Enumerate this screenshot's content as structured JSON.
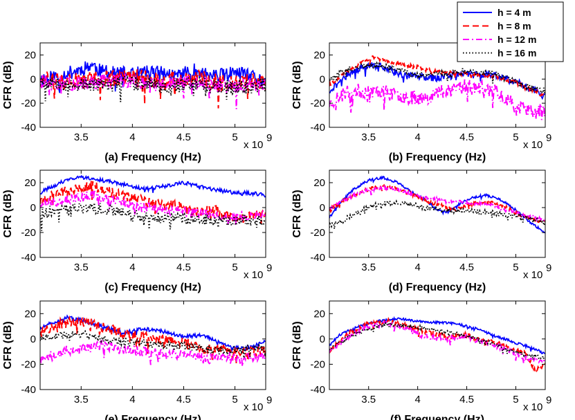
{
  "colors": {
    "h4": "#0000ff",
    "h8": "#ff0000",
    "h12": "#ff00ff",
    "h16": "#000000"
  },
  "legend": {
    "position": "top-right",
    "entries": [
      {
        "label": "h = 4 m",
        "color": "#0000ff",
        "style": "solid"
      },
      {
        "label": "h = 8 m",
        "color": "#ff0000",
        "style": "dashed"
      },
      {
        "label": "h = 12 m",
        "color": "#ff00ff",
        "style": "dashdot"
      },
      {
        "label": "h = 16 m",
        "color": "#000000",
        "style": "dotted"
      }
    ]
  },
  "chart_data": [
    {
      "type": "line",
      "caption": "(a)  Frequency (Hz)",
      "ylabel": "CFR (dB)",
      "xlim": [
        3.1,
        5.3
      ],
      "ylim": [
        -40,
        30
      ],
      "x_multiplier": "x 10",
      "x_multiplier_exp": "9",
      "xticks": [
        "3.5",
        "4",
        "4.5",
        "5"
      ],
      "yticks": [
        "20",
        "0",
        "-20",
        "-40"
      ],
      "series": [
        {
          "name": "h = 4 m",
          "x": [
            3.1,
            3.3,
            3.5,
            3.6,
            3.7,
            3.8,
            4.0,
            4.2,
            4.4,
            4.6,
            4.8,
            5.0,
            5.2,
            5.3
          ],
          "y": [
            0,
            3,
            8,
            12,
            6,
            5,
            4,
            6,
            3,
            7,
            2,
            5,
            1,
            -2
          ],
          "noise": 12,
          "seed": 11
        },
        {
          "name": "h = 8 m",
          "x": [
            3.1,
            3.4,
            3.7,
            4.0,
            4.3,
            4.6,
            4.9,
            5.1,
            5.3
          ],
          "y": [
            0,
            -2,
            0,
            2,
            -2,
            1,
            -3,
            -2,
            -3
          ],
          "noise": 14,
          "seed": 12
        },
        {
          "name": "h = 12 m",
          "x": [
            3.1,
            3.4,
            3.7,
            4.0,
            4.3,
            4.6,
            4.9,
            5.1,
            5.3
          ],
          "y": [
            -2,
            -4,
            -2,
            -1,
            -5,
            -2,
            -6,
            -5,
            -4
          ],
          "noise": 12,
          "seed": 13
        },
        {
          "name": "h = 16 m",
          "x": [
            3.1,
            3.4,
            3.7,
            4.0,
            4.3,
            4.6,
            4.9,
            5.1,
            5.3
          ],
          "y": [
            -2,
            -5,
            -4,
            -3,
            -6,
            -4,
            -7,
            -6,
            -5
          ],
          "noise": 12,
          "seed": 14
        }
      ]
    },
    {
      "type": "line",
      "caption": "(b)  Frequency (Hz)",
      "ylabel": "CFR (dB)",
      "xlim": [
        3.1,
        5.3
      ],
      "ylim": [
        -40,
        30
      ],
      "x_multiplier": "x 10",
      "x_multiplier_exp": "9",
      "xticks": [
        "3.5",
        "4",
        "4.5",
        "5"
      ],
      "yticks": [
        "20",
        "0",
        "-20",
        "-40"
      ],
      "series": [
        {
          "name": "h = 4 m",
          "x": [
            3.1,
            3.3,
            3.5,
            3.65,
            3.8,
            4.0,
            4.2,
            4.5,
            4.8,
            5.0,
            5.2,
            5.3
          ],
          "y": [
            -10,
            5,
            12,
            10,
            5,
            2,
            1,
            5,
            3,
            -2,
            -10,
            -15
          ],
          "noise": 6,
          "seed": 21
        },
        {
          "name": "h = 8 m",
          "x": [
            3.1,
            3.3,
            3.55,
            3.8,
            4.0,
            4.2,
            4.5,
            4.8,
            5.0,
            5.2,
            5.3
          ],
          "y": [
            -5,
            8,
            18,
            13,
            10,
            6,
            4,
            2,
            -3,
            -10,
            -15
          ],
          "noise": 3,
          "seed": 22
        },
        {
          "name": "h = 12 m",
          "x": [
            3.1,
            3.3,
            3.6,
            3.9,
            4.1,
            4.3,
            4.5,
            4.8,
            5.0,
            5.2,
            5.3
          ],
          "y": [
            -20,
            -10,
            -10,
            -15,
            -15,
            -8,
            -5,
            -10,
            -22,
            -28,
            -25
          ],
          "noise": 12,
          "seed": 23
        },
        {
          "name": "h = 16 m",
          "x": [
            3.1,
            3.3,
            3.55,
            3.8,
            4.0,
            4.3,
            4.5,
            4.8,
            5.0,
            5.3
          ],
          "y": [
            0,
            8,
            12,
            8,
            3,
            5,
            7,
            4,
            -3,
            -10
          ],
          "noise": 5,
          "seed": 24
        }
      ]
    },
    {
      "type": "line",
      "caption": "(c)  Frequency (Hz)",
      "ylabel": "CFR (dB)",
      "xlim": [
        3.1,
        5.3
      ],
      "ylim": [
        -40,
        30
      ],
      "x_multiplier": "x 10",
      "x_multiplier_exp": "9",
      "xticks": [
        "3.5",
        "4",
        "4.5",
        "5"
      ],
      "yticks": [
        "20",
        "0",
        "-20",
        "-40"
      ],
      "series": [
        {
          "name": "h = 4 m",
          "x": [
            3.1,
            3.3,
            3.5,
            3.7,
            3.9,
            4.1,
            4.3,
            4.5,
            4.7,
            4.9,
            5.1,
            5.3
          ],
          "y": [
            12,
            20,
            25,
            22,
            19,
            15,
            17,
            20,
            16,
            13,
            12,
            10
          ],
          "noise": 3,
          "seed": 31
        },
        {
          "name": "h = 8 m",
          "x": [
            3.1,
            3.3,
            3.6,
            3.8,
            4.0,
            4.2,
            4.4,
            4.6,
            4.8,
            5.0,
            5.3
          ],
          "y": [
            5,
            12,
            18,
            12,
            8,
            3,
            2,
            -3,
            -2,
            -8,
            -5
          ],
          "noise": 8,
          "seed": 32
        },
        {
          "name": "h = 12 m",
          "x": [
            3.1,
            3.3,
            3.6,
            3.9,
            4.1,
            4.4,
            4.7,
            5.0,
            5.3
          ],
          "y": [
            2,
            6,
            10,
            5,
            0,
            -2,
            -5,
            -8,
            -5
          ],
          "noise": 8,
          "seed": 33
        },
        {
          "name": "h = 16 m",
          "x": [
            3.1,
            3.3,
            3.6,
            3.9,
            4.1,
            4.4,
            4.7,
            5.0,
            5.3
          ],
          "y": [
            -4,
            -2,
            0,
            -3,
            -8,
            -8,
            -10,
            -10,
            -10
          ],
          "noise": 9,
          "seed": 34
        }
      ]
    },
    {
      "type": "line",
      "caption": "(d)  Frequency (Hz)",
      "ylabel": "CFR (dB)",
      "xlim": [
        3.1,
        5.3
      ],
      "ylim": [
        -40,
        30
      ],
      "x_multiplier": "x 10",
      "x_multiplier_exp": "9",
      "xticks": [
        "3.5",
        "4",
        "4.5",
        "5"
      ],
      "yticks": [
        "20",
        "0",
        "-20",
        "-40"
      ],
      "series": [
        {
          "name": "h = 4 m",
          "x": [
            3.1,
            3.2,
            3.35,
            3.5,
            3.65,
            3.8,
            3.95,
            4.1,
            4.2,
            4.3,
            4.4,
            4.55,
            4.7,
            4.85,
            5.0,
            5.15,
            5.3
          ],
          "y": [
            -8,
            3,
            15,
            22,
            24,
            20,
            12,
            5,
            -2,
            -4,
            2,
            8,
            10,
            6,
            -2,
            -12,
            -20
          ],
          "noise": 2,
          "seed": 41
        },
        {
          "name": "h = 8 m",
          "x": [
            3.1,
            3.3,
            3.5,
            3.7,
            3.9,
            4.1,
            4.3,
            4.4,
            4.5,
            4.7,
            4.9,
            5.1,
            5.3
          ],
          "y": [
            -2,
            8,
            15,
            17,
            12,
            5,
            0,
            -2,
            2,
            5,
            0,
            -8,
            -12
          ],
          "noise": 3,
          "seed": 42
        },
        {
          "name": "h = 12 m",
          "x": [
            3.1,
            3.3,
            3.5,
            3.7,
            3.9,
            4.1,
            4.3,
            4.5,
            4.7,
            4.9,
            5.1,
            5.3
          ],
          "y": [
            0,
            8,
            14,
            16,
            12,
            8,
            5,
            4,
            3,
            -2,
            -6,
            -10
          ],
          "noise": 3,
          "seed": 43
        },
        {
          "name": "h = 16 m",
          "x": [
            3.1,
            3.3,
            3.5,
            3.7,
            3.9,
            4.1,
            4.3,
            4.5,
            4.7,
            4.9,
            5.1,
            5.3
          ],
          "y": [
            -15,
            -8,
            0,
            4,
            3,
            0,
            -2,
            -3,
            -4,
            -6,
            -8,
            -12
          ],
          "noise": 4,
          "seed": 44
        }
      ]
    },
    {
      "type": "line",
      "caption": "(e)  Frequency (Hz)",
      "ylabel": "CFR (dB)",
      "xlim": [
        3.1,
        5.3
      ],
      "ylim": [
        -40,
        30
      ],
      "x_multiplier": "x 10",
      "x_multiplier_exp": "9",
      "xticks": [
        "3.5",
        "4",
        "4.5",
        "5"
      ],
      "yticks": [
        "20",
        "0",
        "-20",
        "-40"
      ],
      "series": [
        {
          "name": "h = 4 m",
          "x": [
            3.1,
            3.2,
            3.35,
            3.5,
            3.7,
            3.9,
            4.1,
            4.3,
            4.5,
            4.7,
            4.9,
            5.1,
            5.3
          ],
          "y": [
            8,
            12,
            17,
            15,
            10,
            5,
            8,
            6,
            2,
            3,
            -5,
            -8,
            -2
          ],
          "noise": 3,
          "seed": 51
        },
        {
          "name": "h = 8 m",
          "x": [
            3.1,
            3.3,
            3.5,
            3.7,
            3.9,
            4.1,
            4.3,
            4.5,
            4.7,
            4.9,
            5.1,
            5.3
          ],
          "y": [
            5,
            12,
            14,
            10,
            5,
            2,
            0,
            -3,
            -8,
            -8,
            -10,
            -10
          ],
          "noise": 8,
          "seed": 52
        },
        {
          "name": "h = 12 m",
          "x": [
            3.1,
            3.3,
            3.5,
            3.7,
            3.9,
            4.1,
            4.3,
            4.5,
            4.7,
            4.9,
            5.1,
            5.3
          ],
          "y": [
            -15,
            -10,
            -8,
            -5,
            -8,
            -10,
            -12,
            -12,
            -15,
            -14,
            -15,
            -12
          ],
          "noise": 8,
          "seed": 53
        },
        {
          "name": "h = 16 m",
          "x": [
            3.1,
            3.3,
            3.5,
            3.7,
            3.9,
            4.1,
            4.3,
            4.5,
            4.7,
            4.9,
            5.1,
            5.3
          ],
          "y": [
            0,
            3,
            4,
            0,
            -2,
            -3,
            -5,
            -5,
            -8,
            -10,
            -8,
            -8
          ],
          "noise": 6,
          "seed": 54
        }
      ]
    },
    {
      "type": "line",
      "caption": "(f)  Frequency (Hz)",
      "ylabel": "CFR (dB)",
      "xlim": [
        3.1,
        5.3
      ],
      "ylim": [
        -40,
        30
      ],
      "x_multiplier": "x 10",
      "x_multiplier_exp": "9",
      "xticks": [
        "3.5",
        "4",
        "4.5",
        "5"
      ],
      "yticks": [
        "20",
        "0",
        "-20",
        "-40"
      ],
      "series": [
        {
          "name": "h = 4 m",
          "x": [
            3.1,
            3.2,
            3.4,
            3.6,
            3.8,
            4.0,
            4.2,
            4.4,
            4.6,
            4.8,
            5.0,
            5.2,
            5.3
          ],
          "y": [
            -5,
            3,
            10,
            14,
            16,
            14,
            13,
            12,
            8,
            2,
            -3,
            -8,
            -12
          ],
          "noise": 2,
          "seed": 61
        },
        {
          "name": "h = 8 m",
          "x": [
            3.1,
            3.3,
            3.5,
            3.7,
            3.9,
            4.1,
            4.3,
            4.5,
            4.7,
            4.9,
            5.1,
            5.2,
            5.3
          ],
          "y": [
            -10,
            5,
            12,
            14,
            10,
            5,
            2,
            3,
            -2,
            -5,
            -12,
            -25,
            -20
          ],
          "noise": 4,
          "seed": 62
        },
        {
          "name": "h = 12 m",
          "x": [
            3.1,
            3.3,
            3.5,
            3.7,
            3.9,
            4.1,
            4.3,
            4.5,
            4.7,
            4.9,
            5.1,
            5.3
          ],
          "y": [
            -10,
            3,
            10,
            12,
            8,
            2,
            0,
            2,
            -3,
            -8,
            -15,
            -18
          ],
          "noise": 4,
          "seed": 63
        },
        {
          "name": "h = 16 m",
          "x": [
            3.1,
            3.3,
            3.5,
            3.7,
            3.9,
            4.1,
            4.3,
            4.5,
            4.7,
            4.9,
            5.1,
            5.3
          ],
          "y": [
            -8,
            2,
            8,
            12,
            10,
            8,
            6,
            2,
            -2,
            -8,
            -12,
            -15
          ],
          "noise": 3,
          "seed": 64
        }
      ]
    }
  ]
}
